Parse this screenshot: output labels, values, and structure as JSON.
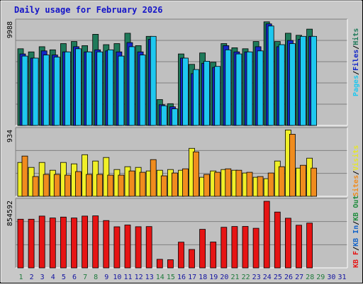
{
  "chart_data": {
    "type": "bar",
    "title": "Daily usage for February 2026",
    "categories": [
      "1",
      "2",
      "3",
      "4",
      "5",
      "6",
      "7",
      "8",
      "9",
      "10",
      "11",
      "12",
      "13",
      "14",
      "15",
      "16",
      "17",
      "18",
      "19",
      "20",
      "21",
      "22",
      "23",
      "24",
      "25",
      "26",
      "27",
      "28",
      "29",
      "30",
      "31"
    ],
    "weekend_days": [
      1,
      7,
      8,
      14,
      15,
      21,
      22,
      28,
      29
    ],
    "panels": [
      {
        "id": "top",
        "max_label": "9988",
        "ylim": [
          0,
          9988
        ],
        "series": [
          {
            "name": "Hits",
            "color": "#1f7a5a",
            "values": [
              7400,
              7100,
              7600,
              7300,
              7900,
              8100,
              7700,
              8800,
              7800,
              7900,
              8900,
              7700,
              8600,
              2500,
              2100,
              6900,
              5900,
              7000,
              6100,
              7900,
              7500,
              7400,
              8100,
              10000,
              8100,
              8900,
              8700,
              9300,
              null,
              null,
              null
            ]
          },
          {
            "name": "Files",
            "color": "#1428c8",
            "values": [
              6900,
              6500,
              7200,
              6800,
              7100,
              7600,
              7100,
              7300,
              7200,
              7100,
              8000,
              7100,
              8300,
              2000,
              1800,
              6500,
              5000,
              6000,
              5600,
              7700,
              7100,
              7100,
              7600,
              9800,
              7600,
              8200,
              8300,
              8600,
              null,
              null,
              null
            ]
          },
          {
            "name": "Pages",
            "color": "#1ec8f0",
            "values": [
              6700,
              6500,
              6800,
              6600,
              7100,
              7400,
              7100,
              7100,
              7300,
              6700,
              7600,
              6800,
              8600,
              1900,
              1600,
              6500,
              5400,
              6200,
              5700,
              7300,
              6900,
              7100,
              7200,
              9600,
              7800,
              7900,
              8600,
              8600,
              null,
              null,
              null
            ]
          }
        ]
      },
      {
        "id": "middle",
        "max_label": "934",
        "ylim": [
          0,
          934
        ],
        "series": [
          {
            "name": "Visits",
            "color": "#f0f028",
            "values": [
              480,
              410,
              480,
              370,
              480,
              460,
              590,
              500,
              550,
              380,
              420,
              410,
              360,
              370,
              380,
              370,
              680,
              270,
              360,
              380,
              370,
              330,
              270,
              250,
              500,
              940,
              400,
              540,
              null,
              null,
              null
            ]
          },
          {
            "name": "Sites",
            "color": "#f08c1e",
            "values": [
              570,
              280,
              310,
              310,
              300,
              350,
              310,
              310,
              300,
              300,
              360,
              340,
              520,
              290,
              330,
              390,
              630,
              310,
              340,
              390,
              370,
              340,
              280,
              330,
              420,
              880,
              440,
              400,
              null,
              null,
              null
            ]
          }
        ]
      },
      {
        "id": "bottom",
        "max_label": "854592",
        "ylim": [
          0,
          854592
        ],
        "series": [
          {
            "name": "KBytes",
            "color": "#e61414",
            "values": [
              625000,
              625000,
              665000,
              640000,
              652000,
              640000,
              665000,
              667000,
              607000,
              527000,
              550000,
              528000,
              530000,
              110000,
              105000,
              330000,
              236000,
              495000,
              332000,
              521000,
              531000,
              532000,
              508000,
              855000,
              716000,
              637000,
              547000,
              575000,
              null,
              null,
              null
            ]
          }
        ]
      }
    ],
    "right_labels": [
      {
        "text": "Hits",
        "color": "#1f7a5a"
      },
      {
        "text": "Files",
        "color": "#1428c8"
      },
      {
        "text": "Pages",
        "color": "#1ec8f0"
      },
      {
        "text": "Visits",
        "color": "#e6e628"
      },
      {
        "text": "Sites",
        "color": "#f08c1e"
      },
      {
        "text": "KB Out",
        "color": "#1f8c3c"
      },
      {
        "text": "KB In",
        "color": "#1464c8"
      },
      {
        "text": "KB F",
        "color": "#e61414"
      }
    ],
    "right_separator": "/",
    "colors": {
      "title": "#1414c8",
      "background": "#c8c8c8",
      "plot": "#c0c0c0",
      "weekday_label": "#1414a0",
      "weekend_label": "#1f7a3c"
    }
  }
}
